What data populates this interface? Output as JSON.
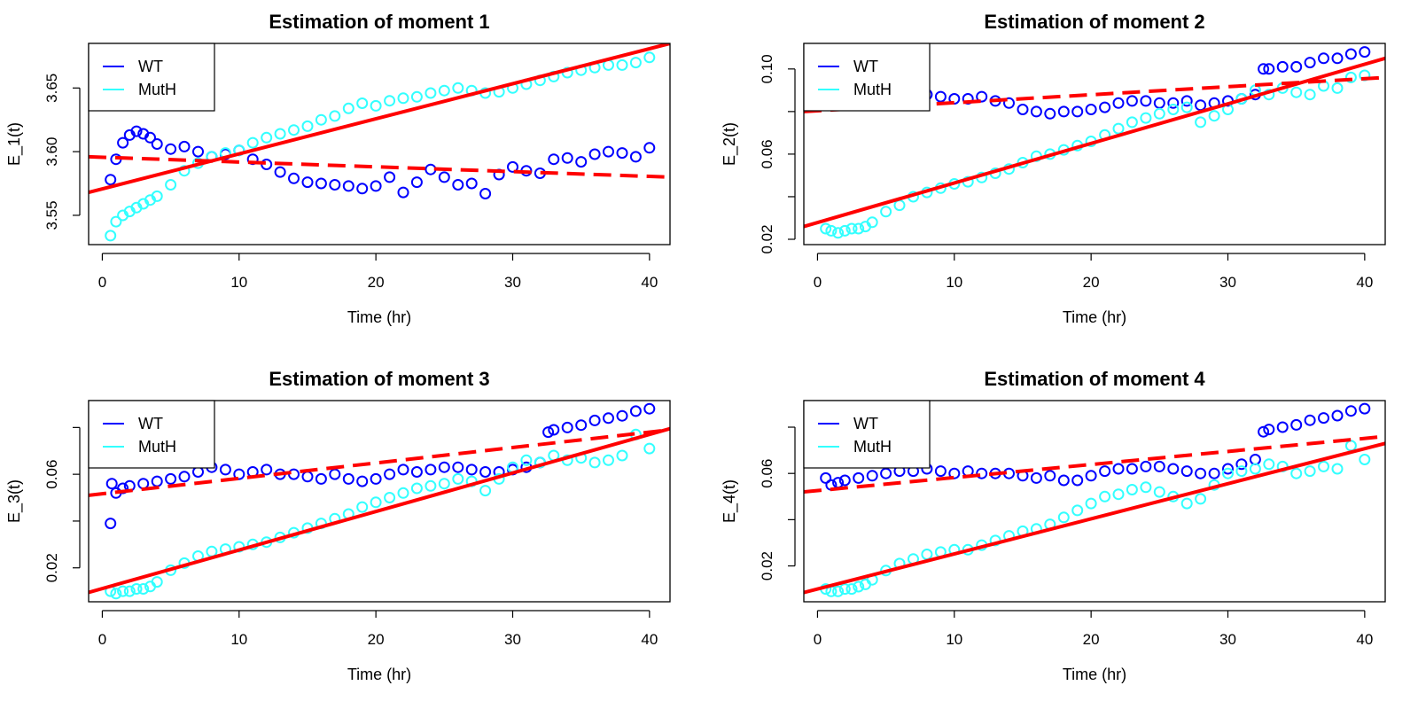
{
  "chart_data": [
    {
      "type": "scatter",
      "title": "Estimation of moment 1",
      "xlabel": "Time (hr)",
      "ylabel": "E_1(t)",
      "xlim": [
        -1,
        41.5
      ],
      "ylim": [
        3.527,
        3.685
      ],
      "xticks": [
        0,
        10,
        20,
        30,
        40
      ],
      "xtick_labels": [
        "0",
        "10",
        "20",
        "30",
        "40"
      ],
      "yticks": [
        3.55,
        3.6,
        3.65
      ],
      "ytick_labels": [
        "3.55",
        "3.60",
        "3.65"
      ],
      "grid": false,
      "legend_position": "top-left",
      "series": [
        {
          "name": "WT",
          "color": "#0000ff",
          "marker": "open-circle",
          "x": [
            0.6,
            1,
            1.5,
            2,
            2.5,
            3,
            3.5,
            4,
            5,
            6,
            7,
            8,
            9,
            10,
            11,
            12,
            13,
            14,
            15,
            16,
            17,
            18,
            19,
            20,
            21,
            22,
            23,
            24,
            25,
            26,
            27,
            28,
            29,
            30,
            31,
            32,
            33,
            34,
            35,
            36,
            37,
            38,
            39,
            40
          ],
          "y": [
            3.578,
            3.594,
            3.607,
            3.613,
            3.616,
            3.614,
            3.611,
            3.606,
            3.602,
            3.604,
            3.6,
            3.596,
            3.598,
            3.601,
            3.594,
            3.59,
            3.584,
            3.579,
            3.576,
            3.575,
            3.574,
            3.573,
            3.571,
            3.573,
            3.58,
            3.568,
            3.576,
            3.586,
            3.58,
            3.574,
            3.575,
            3.567,
            3.582,
            3.588,
            3.585,
            3.583,
            3.594,
            3.595,
            3.592,
            3.598,
            3.6,
            3.599,
            3.596,
            3.603
          ]
        },
        {
          "name": "MutH",
          "color": "#33ffff",
          "marker": "open-circle",
          "x": [
            0.6,
            1,
            1.5,
            2,
            2.5,
            3,
            3.5,
            4,
            5,
            6,
            7,
            8,
            9,
            10,
            11,
            12,
            13,
            14,
            15,
            16,
            17,
            18,
            19,
            20,
            21,
            22,
            23,
            24,
            25,
            26,
            27,
            28,
            29,
            30,
            31,
            32,
            33,
            34,
            35,
            36,
            37,
            38,
            39,
            40
          ],
          "y": [
            3.534,
            3.545,
            3.55,
            3.553,
            3.556,
            3.559,
            3.562,
            3.565,
            3.574,
            3.585,
            3.591,
            3.596,
            3.599,
            3.601,
            3.607,
            3.611,
            3.614,
            3.617,
            3.62,
            3.625,
            3.628,
            3.634,
            3.638,
            3.636,
            3.64,
            3.642,
            3.643,
            3.646,
            3.648,
            3.65,
            3.648,
            3.646,
            3.647,
            3.65,
            3.653,
            3.656,
            3.659,
            3.662,
            3.664,
            3.666,
            3.668,
            3.668,
            3.67,
            3.674
          ]
        }
      ],
      "fit_lines": [
        {
          "series": "WT",
          "color": "#ff0000",
          "style": "dashed",
          "x": [
            -1,
            41.5
          ],
          "y": [
            3.596,
            3.58
          ]
        },
        {
          "series": "MutH",
          "color": "#ff0000",
          "style": "solid",
          "x": [
            -1,
            41.5
          ],
          "y": [
            3.568,
            3.685
          ]
        }
      ]
    },
    {
      "type": "scatter",
      "title": "Estimation of moment 2",
      "xlabel": "Time (hr)",
      "ylabel": "E_2(t)",
      "xlim": [
        -1,
        41.5
      ],
      "ylim": [
        0.0175,
        0.112
      ],
      "xticks": [
        0,
        10,
        20,
        30,
        40
      ],
      "xtick_labels": [
        "0",
        "10",
        "20",
        "30",
        "40"
      ],
      "yticks": [
        0.02,
        0.04,
        0.06,
        0.08,
        0.1
      ],
      "ytick_labels": [
        "0.02",
        "",
        "0.06",
        "",
        "0.10"
      ],
      "grid": false,
      "legend_position": "top-left",
      "series": [
        {
          "name": "WT",
          "color": "#0000ff",
          "marker": "open-circle",
          "x": [
            0.6,
            1,
            2,
            3,
            4,
            5,
            6,
            7,
            8,
            9,
            10,
            11,
            12,
            13,
            14,
            15,
            16,
            17,
            18,
            19,
            20,
            21,
            22,
            23,
            24,
            25,
            26,
            27,
            28,
            29,
            30,
            31,
            32,
            32.6,
            33,
            34,
            35,
            36,
            37,
            38,
            39,
            40
          ],
          "y": [
            0.083,
            0.085,
            0.086,
            0.087,
            0.086,
            0.087,
            0.086,
            0.085,
            0.088,
            0.087,
            0.086,
            0.086,
            0.087,
            0.085,
            0.084,
            0.081,
            0.08,
            0.079,
            0.08,
            0.08,
            0.081,
            0.082,
            0.084,
            0.085,
            0.085,
            0.084,
            0.084,
            0.085,
            0.083,
            0.084,
            0.085,
            0.086,
            0.088,
            0.1,
            0.1,
            0.101,
            0.101,
            0.103,
            0.105,
            0.105,
            0.107,
            0.108
          ]
        },
        {
          "name": "MutH",
          "color": "#33ffff",
          "marker": "open-circle",
          "x": [
            0.6,
            1,
            1.5,
            2,
            2.5,
            3,
            3.5,
            4,
            5,
            6,
            7,
            8,
            9,
            10,
            11,
            12,
            13,
            14,
            15,
            16,
            17,
            18,
            19,
            20,
            21,
            22,
            23,
            24,
            25,
            26,
            27,
            28,
            29,
            30,
            31,
            32,
            33,
            34,
            35,
            36,
            37,
            38,
            39,
            40
          ],
          "y": [
            0.025,
            0.024,
            0.023,
            0.024,
            0.025,
            0.025,
            0.026,
            0.028,
            0.033,
            0.036,
            0.04,
            0.042,
            0.044,
            0.046,
            0.047,
            0.049,
            0.051,
            0.053,
            0.056,
            0.059,
            0.06,
            0.062,
            0.064,
            0.066,
            0.069,
            0.072,
            0.075,
            0.077,
            0.079,
            0.081,
            0.082,
            0.075,
            0.078,
            0.081,
            0.086,
            0.09,
            0.088,
            0.091,
            0.089,
            0.088,
            0.092,
            0.091,
            0.096,
            0.097
          ]
        }
      ],
      "fit_lines": [
        {
          "series": "WT",
          "color": "#ff0000",
          "style": "dashed",
          "x": [
            -1,
            41.5
          ],
          "y": [
            0.08,
            0.096
          ]
        },
        {
          "series": "MutH",
          "color": "#ff0000",
          "style": "solid",
          "x": [
            -1,
            41.5
          ],
          "y": [
            0.026,
            0.105
          ]
        }
      ]
    },
    {
      "type": "scatter",
      "title": "Estimation of moment 3",
      "xlabel": "Time (hr)",
      "ylabel": "E_3(t)",
      "xlim": [
        -1,
        41.5
      ],
      "ylim": [
        0.0055,
        0.0915
      ],
      "xticks": [
        0,
        10,
        20,
        30,
        40
      ],
      "xtick_labels": [
        "0",
        "10",
        "20",
        "30",
        "40"
      ],
      "yticks": [
        0.02,
        0.04,
        0.06,
        0.08
      ],
      "ytick_labels": [
        "0.02",
        "",
        "0.06",
        ""
      ],
      "grid": false,
      "legend_position": "top-left",
      "series": [
        {
          "name": "WT",
          "color": "#0000ff",
          "marker": "open-circle",
          "x": [
            0.6,
            0.7,
            1,
            1.5,
            2,
            3,
            4,
            5,
            6,
            7,
            8,
            9,
            10,
            11,
            12,
            13,
            14,
            15,
            16,
            17,
            18,
            19,
            20,
            21,
            22,
            23,
            24,
            25,
            26,
            27,
            28,
            29,
            30,
            31,
            32,
            32.6,
            33,
            34,
            35,
            36,
            37,
            38,
            39,
            40
          ],
          "y": [
            0.039,
            0.056,
            0.052,
            0.054,
            0.055,
            0.056,
            0.057,
            0.058,
            0.059,
            0.061,
            0.063,
            0.062,
            0.06,
            0.061,
            0.062,
            0.06,
            0.06,
            0.059,
            0.058,
            0.06,
            0.058,
            0.057,
            0.058,
            0.06,
            0.062,
            0.061,
            0.062,
            0.063,
            0.063,
            0.062,
            0.061,
            0.061,
            0.062,
            0.063,
            0.065,
            0.078,
            0.079,
            0.08,
            0.081,
            0.083,
            0.084,
            0.085,
            0.087,
            0.088
          ]
        },
        {
          "name": "MutH",
          "color": "#33ffff",
          "marker": "open-circle",
          "x": [
            0.6,
            1,
            1.5,
            2,
            2.5,
            3,
            3.5,
            4,
            5,
            6,
            7,
            8,
            9,
            10,
            11,
            12,
            13,
            14,
            15,
            16,
            17,
            18,
            19,
            20,
            21,
            22,
            23,
            24,
            25,
            26,
            27,
            28,
            29,
            30,
            31,
            32,
            33,
            34,
            35,
            36,
            37,
            38,
            39,
            40
          ],
          "y": [
            0.01,
            0.009,
            0.01,
            0.01,
            0.011,
            0.011,
            0.012,
            0.014,
            0.019,
            0.022,
            0.025,
            0.027,
            0.028,
            0.029,
            0.03,
            0.031,
            0.033,
            0.035,
            0.037,
            0.039,
            0.041,
            0.043,
            0.046,
            0.048,
            0.05,
            0.052,
            0.054,
            0.055,
            0.056,
            0.058,
            0.057,
            0.053,
            0.058,
            0.063,
            0.066,
            0.065,
            0.068,
            0.066,
            0.067,
            0.065,
            0.066,
            0.068,
            0.077,
            0.071
          ]
        }
      ],
      "fit_lines": [
        {
          "series": "WT",
          "color": "#ff0000",
          "style": "dashed",
          "x": [
            -1,
            41.5
          ],
          "y": [
            0.051,
            0.079
          ]
        },
        {
          "series": "MutH",
          "color": "#ff0000",
          "style": "solid",
          "x": [
            -1,
            41.5
          ],
          "y": [
            0.0095,
            0.0795
          ]
        }
      ]
    },
    {
      "type": "scatter",
      "title": "Estimation of moment 4",
      "xlabel": "Time (hr)",
      "ylabel": "E_4(t)",
      "xlim": [
        -1,
        41.5
      ],
      "ylim": [
        0.0045,
        0.0915
      ],
      "xticks": [
        0,
        10,
        20,
        30,
        40
      ],
      "xtick_labels": [
        "0",
        "10",
        "20",
        "30",
        "40"
      ],
      "yticks": [
        0.02,
        0.04,
        0.06,
        0.08
      ],
      "ytick_labels": [
        "0.02",
        "",
        "0.06",
        ""
      ],
      "grid": false,
      "legend_position": "top-left",
      "series": [
        {
          "name": "WT",
          "color": "#0000ff",
          "marker": "open-circle",
          "x": [
            0.6,
            1,
            1.5,
            2,
            3,
            4,
            5,
            6,
            7,
            8,
            9,
            10,
            11,
            12,
            13,
            14,
            15,
            16,
            17,
            18,
            19,
            20,
            21,
            22,
            23,
            24,
            25,
            26,
            27,
            28,
            29,
            30,
            31,
            32,
            32.6,
            33,
            34,
            35,
            36,
            37,
            38,
            39,
            40
          ],
          "y": [
            0.058,
            0.055,
            0.056,
            0.057,
            0.058,
            0.059,
            0.06,
            0.061,
            0.061,
            0.062,
            0.061,
            0.06,
            0.061,
            0.06,
            0.06,
            0.06,
            0.059,
            0.058,
            0.059,
            0.057,
            0.057,
            0.059,
            0.061,
            0.062,
            0.062,
            0.063,
            0.063,
            0.062,
            0.061,
            0.06,
            0.06,
            0.062,
            0.064,
            0.066,
            0.078,
            0.079,
            0.08,
            0.081,
            0.083,
            0.084,
            0.085,
            0.087,
            0.088
          ]
        },
        {
          "name": "MutH",
          "color": "#33ffff",
          "marker": "open-circle",
          "x": [
            0.6,
            1,
            1.5,
            2,
            2.5,
            3,
            3.5,
            4,
            5,
            6,
            7,
            8,
            9,
            10,
            11,
            12,
            13,
            14,
            15,
            16,
            17,
            18,
            19,
            20,
            21,
            22,
            23,
            24,
            25,
            26,
            27,
            28,
            29,
            30,
            31,
            32,
            33,
            34,
            35,
            36,
            37,
            38,
            39,
            40
          ],
          "y": [
            0.01,
            0.009,
            0.009,
            0.01,
            0.01,
            0.011,
            0.012,
            0.014,
            0.018,
            0.021,
            0.023,
            0.025,
            0.026,
            0.027,
            0.027,
            0.029,
            0.031,
            0.033,
            0.035,
            0.036,
            0.038,
            0.041,
            0.044,
            0.047,
            0.05,
            0.051,
            0.053,
            0.054,
            0.052,
            0.05,
            0.047,
            0.049,
            0.055,
            0.06,
            0.061,
            0.062,
            0.064,
            0.063,
            0.06,
            0.061,
            0.063,
            0.062,
            0.072,
            0.066
          ]
        }
      ],
      "fit_lines": [
        {
          "series": "WT",
          "color": "#ff0000",
          "style": "dashed",
          "x": [
            -1,
            41.5
          ],
          "y": [
            0.052,
            0.076
          ]
        },
        {
          "series": "MutH",
          "color": "#ff0000",
          "style": "solid",
          "x": [
            -1,
            41.5
          ],
          "y": [
            0.0085,
            0.073
          ]
        }
      ]
    }
  ]
}
